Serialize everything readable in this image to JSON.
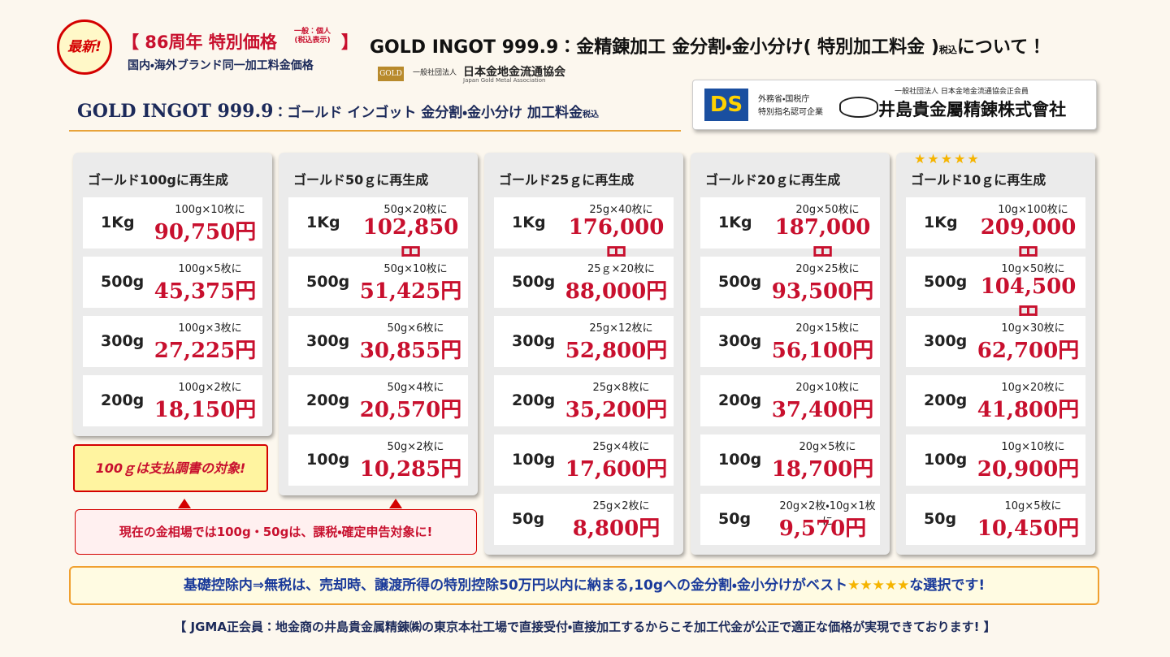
{
  "badge": "最新!",
  "promo": {
    "title": "【 86周年 特別価格",
    "note_1": "一般：個人",
    "note_2": "(税込表示)",
    "close": "】",
    "subtitle": "国内・海外ブランド同一加工料金価格"
  },
  "main_title": {
    "text": "GOLD INGOT 999.9：金精錬加工 金分割・金小分け( 特別加工料金 )",
    "tax": "税込",
    "tail": "について！"
  },
  "association": {
    "logo": "GOLD",
    "type": "一般社団法人",
    "name": "日本金地金流通協会",
    "english": "Japan Gold Metal Association"
  },
  "section_title": {
    "brand": "GOLD INGOT 999.9",
    "text": "：ゴールド インゴット 金分割・金小分け 加工料金",
    "tax": "税込"
  },
  "company": {
    "logo": "DS",
    "cert_1": "外務省・国税庁",
    "cert_2": "特別指名認可企業",
    "member": "一般社団法人 日本金地金流通協会正会員",
    "name": "井島貴金屬精錬株式會社"
  },
  "columns": [
    {
      "title": "ゴールド100gに再生成",
      "rows": [
        {
          "weight": "1Kg",
          "detail": "100g×10枚に",
          "price": "90,750円"
        },
        {
          "weight": "500g",
          "detail": "100g×5枚に",
          "price": "45,375円"
        },
        {
          "weight": "300g",
          "detail": "100g×3枚に",
          "price": "27,225円"
        },
        {
          "weight": "200g",
          "detail": "100g×2枚に",
          "price": "18,150円"
        }
      ]
    },
    {
      "title": "ゴールド50ｇに再生成",
      "rows": [
        {
          "weight": "1Kg",
          "detail": "50g×20枚に",
          "price": "102,850円"
        },
        {
          "weight": "500g",
          "detail": "50g×10枚に",
          "price": "51,425円"
        },
        {
          "weight": "300g",
          "detail": "50g×6枚に",
          "price": "30,855円"
        },
        {
          "weight": "200g",
          "detail": "50g×4枚に",
          "price": "20,570円"
        },
        {
          "weight": "100g",
          "detail": "50g×2枚に",
          "price": "10,285円"
        }
      ]
    },
    {
      "title": "ゴールド25ｇに再生成",
      "rows": [
        {
          "weight": "1Kg",
          "detail": "25g×40枚に",
          "price": "176,000円"
        },
        {
          "weight": "500g",
          "detail": "25ｇ×20枚に",
          "price": "88,000円"
        },
        {
          "weight": "300g",
          "detail": "25g×12枚に",
          "price": "52,800円"
        },
        {
          "weight": "200g",
          "detail": "25g×8枚に",
          "price": "35,200円"
        },
        {
          "weight": "100g",
          "detail": "25g×4枚に",
          "price": "17,600円"
        },
        {
          "weight": "50g",
          "detail": "25g×2枚に",
          "price": "8,800円"
        }
      ]
    },
    {
      "title": "ゴールド20ｇに再生成",
      "rows": [
        {
          "weight": "1Kg",
          "detail": "20g×50枚に",
          "price": "187,000円"
        },
        {
          "weight": "500g",
          "detail": "20g×25枚に",
          "price": "93,500円"
        },
        {
          "weight": "300g",
          "detail": "20g×15枚に",
          "price": "56,100円"
        },
        {
          "weight": "200g",
          "detail": "20g×10枚に",
          "price": "37,400円"
        },
        {
          "weight": "100g",
          "detail": "20g×5枚に",
          "price": "18,700円"
        },
        {
          "weight": "50g",
          "detail": "20g×2枚・10g×1枚に",
          "price": "9,570円"
        }
      ]
    },
    {
      "rating": "★★★★★",
      "title": "ゴールド10ｇに再生成",
      "rows": [
        {
          "weight": "1Kg",
          "detail": "10g×100枚に",
          "price": "209,000円"
        },
        {
          "weight": "500g",
          "detail": "10g×50枚に",
          "price": "104,500円"
        },
        {
          "weight": "300g",
          "detail": "10g×30枚に",
          "price": "62,700円"
        },
        {
          "weight": "200g",
          "detail": "10g×20枚に",
          "price": "41,800円"
        },
        {
          "weight": "100g",
          "detail": "10g×10枚に",
          "price": "20,900円"
        },
        {
          "weight": "50g",
          "detail": "10g×5枚に",
          "price": "10,450円"
        }
      ]
    }
  ],
  "callout": "100ｇは支払調書の対象!",
  "notice": "現在の金相場では100g・50gは、課税・確定申告対象に!",
  "banner": {
    "text_1": "基礎控除内⇒無税は、売却時、譲渡所得の特別控除50万円以内に納まる,10gへの金分割・金小分けがベスト",
    "stars": "★★★★★",
    "text_2": "な選択です!"
  },
  "footer": "【 JGMA正会員：地金商の井島貴金属精錬㈱の東京本社工場で直接受付・直接加工するからこそ加工代金が公正で適正な価格が実現できております! 】"
}
